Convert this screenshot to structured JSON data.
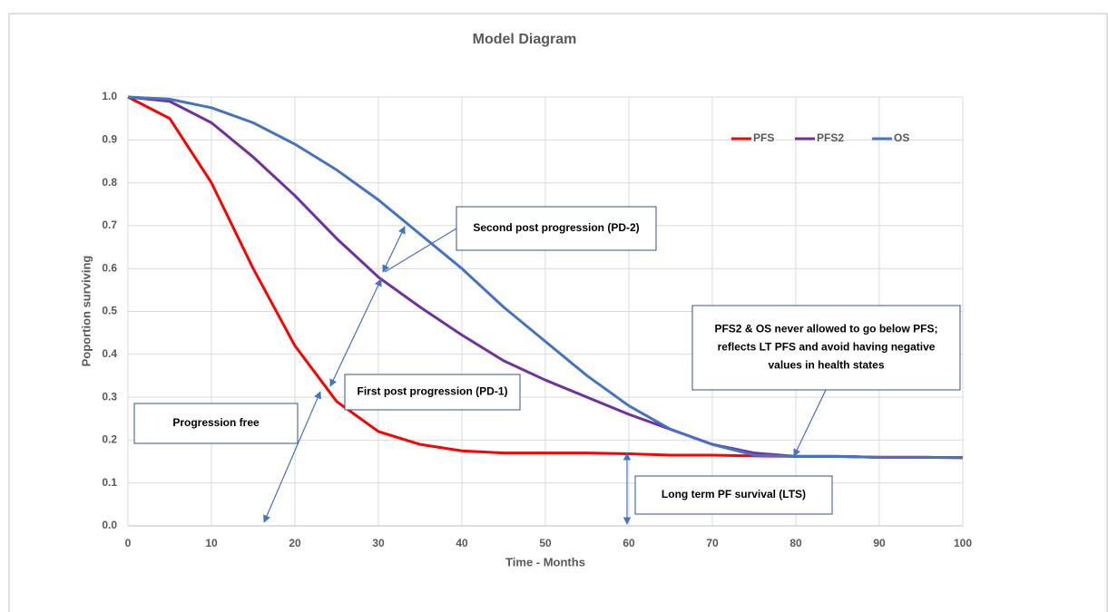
{
  "chart_data": {
    "type": "line",
    "title": "Model Diagram",
    "x_label": "Time - Months",
    "y_label": "Poportion surviving",
    "x": [
      0,
      5,
      10,
      15,
      20,
      25,
      30,
      35,
      40,
      45,
      50,
      55,
      60,
      65,
      70,
      75,
      80,
      85,
      90,
      95,
      100
    ],
    "series": [
      {
        "name": "PFS",
        "color": "#ff0000",
        "values": [
          1.0,
          0.95,
          0.8,
          0.6,
          0.42,
          0.29,
          0.22,
          0.19,
          0.175,
          0.17,
          0.17,
          0.17,
          0.168,
          0.165,
          0.165,
          0.163,
          0.162,
          0.162,
          0.16,
          0.16,
          0.159
        ]
      },
      {
        "name": "PFS2",
        "color": "#7030a0",
        "values": [
          1.0,
          0.99,
          0.94,
          0.86,
          0.77,
          0.67,
          0.58,
          0.51,
          0.445,
          0.385,
          0.34,
          0.3,
          0.26,
          0.225,
          0.19,
          0.17,
          0.162,
          0.162,
          0.16,
          0.16,
          0.159
        ]
      },
      {
        "name": "OS",
        "color": "#4472c4",
        "values": [
          1.0,
          0.995,
          0.975,
          0.94,
          0.89,
          0.83,
          0.76,
          0.68,
          0.6,
          0.51,
          0.43,
          0.35,
          0.28,
          0.225,
          0.19,
          0.165,
          0.162,
          0.162,
          0.16,
          0.16,
          0.159
        ]
      }
    ],
    "xlim": [
      0,
      100
    ],
    "xticks": [
      0,
      10,
      20,
      30,
      40,
      50,
      60,
      70,
      80,
      90,
      100
    ],
    "ylim": [
      0,
      1
    ],
    "yticks": [
      {
        "value": 0,
        "label": "0.0"
      },
      0.1,
      0.2,
      0.3,
      0.4,
      0.5,
      0.6,
      0.7,
      0.8,
      0.9,
      {
        "value": 1,
        "label": "1.0"
      }
    ],
    "grid": true,
    "legend": "top-right",
    "annotations": [
      {
        "lines": [
          "Second post progression (PD-2)"
        ]
      },
      {
        "lines": [
          "First post progression (PD-1)"
        ]
      },
      {
        "lines": [
          "Progression free"
        ]
      },
      {
        "lines": [
          "Long term PF survival (LTS)"
        ]
      },
      {
        "lines": [
          "PFS2 & OS never allowed to go below PFS;",
          "reflects LT PFS and avoid having negative",
          "values in health states"
        ]
      }
    ]
  }
}
